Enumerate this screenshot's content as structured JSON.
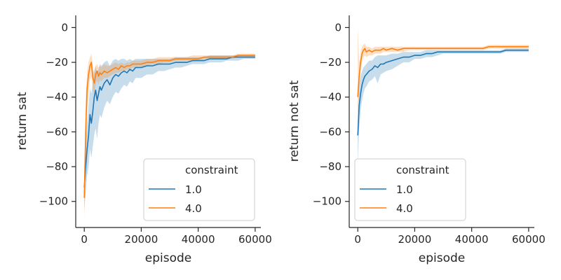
{
  "chart_data": [
    {
      "type": "line",
      "title": "",
      "xlabel": "episode",
      "ylabel": "return sat",
      "xlim": [
        -3000,
        62000
      ],
      "ylim": [
        -115,
        7
      ],
      "xticks": [
        {
          "value": 0,
          "label": "0"
        },
        {
          "value": 20000,
          "label": "20000"
        },
        {
          "value": 40000,
          "label": "40000"
        },
        {
          "value": 60000,
          "label": "60000"
        }
      ],
      "yticks": [
        {
          "value": 0,
          "label": "0"
        },
        {
          "value": -20,
          "label": "−20"
        },
        {
          "value": -40,
          "label": "−40"
        },
        {
          "value": -60,
          "label": "−60"
        },
        {
          "value": -80,
          "label": "−80"
        },
        {
          "value": -100,
          "label": "−100"
        }
      ],
      "legend": {
        "title": "constraint",
        "position": "lower-right"
      },
      "series": [
        {
          "name": "1.0",
          "color": "#1f77b4",
          "x": [
            0,
            500,
            1000,
            1500,
            2000,
            2500,
            3000,
            3500,
            4000,
            4500,
            5000,
            5500,
            6000,
            7000,
            8000,
            9000,
            10000,
            11000,
            12000,
            13000,
            14000,
            15000,
            16000,
            17000,
            18000,
            20000,
            22000,
            24000,
            26000,
            28000,
            30000,
            32000,
            34000,
            36000,
            38000,
            40000,
            42000,
            44000,
            46000,
            48000,
            50000,
            52000,
            54000,
            56000,
            58000,
            60000
          ],
          "y": [
            -92,
            -80,
            -70,
            -62,
            -50,
            -55,
            -48,
            -40,
            -36,
            -42,
            -38,
            -34,
            -36,
            -32,
            -30,
            -33,
            -29,
            -27,
            -28,
            -26,
            -25,
            -26,
            -24,
            -25,
            -23,
            -23,
            -22,
            -22,
            -21,
            -21,
            -21,
            -20,
            -20,
            -20,
            -19,
            -19,
            -19,
            -18,
            -18,
            -18,
            -18,
            -17,
            -17,
            -17,
            -17,
            -17
          ],
          "lower": [
            -105,
            -95,
            -85,
            -80,
            -70,
            -75,
            -68,
            -62,
            -58,
            -64,
            -55,
            -50,
            -52,
            -46,
            -42,
            -44,
            -40,
            -37,
            -38,
            -35,
            -33,
            -34,
            -31,
            -32,
            -29,
            -29,
            -27,
            -27,
            -25,
            -25,
            -24,
            -23,
            -23,
            -22,
            -21,
            -21,
            -21,
            -20,
            -20,
            -20,
            -19,
            -19,
            -19,
            -18,
            -18,
            -18
          ],
          "upper": [
            -80,
            -65,
            -55,
            -45,
            -35,
            -38,
            -32,
            -25,
            -22,
            -26,
            -24,
            -21,
            -22,
            -20,
            -19,
            -22,
            -19,
            -18,
            -19,
            -18,
            -18,
            -19,
            -18,
            -19,
            -18,
            -18,
            -18,
            -18,
            -18,
            -18,
            -18,
            -17,
            -17,
            -17,
            -17,
            -17,
            -17,
            -16,
            -16,
            -16,
            -16,
            -16,
            -16,
            -16,
            -16,
            -16
          ]
        },
        {
          "name": "4.0",
          "color": "#ff7f0e",
          "x": [
            0,
            500,
            1000,
            1500,
            2000,
            2500,
            3000,
            3500,
            4000,
            4500,
            5000,
            5500,
            6000,
            7000,
            8000,
            9000,
            10000,
            11000,
            12000,
            13000,
            14000,
            15000,
            16000,
            17000,
            18000,
            20000,
            22000,
            24000,
            26000,
            28000,
            30000,
            32000,
            34000,
            36000,
            38000,
            40000,
            42000,
            44000,
            46000,
            48000,
            50000,
            52000,
            54000,
            56000,
            58000,
            60000
          ],
          "y": [
            -98,
            -60,
            -35,
            -27,
            -22,
            -20,
            -29,
            -32,
            -27,
            -25,
            -28,
            -26,
            -27,
            -25,
            -26,
            -25,
            -24,
            -23,
            -24,
            -22,
            -23,
            -22,
            -22,
            -21,
            -21,
            -21,
            -20,
            -20,
            -19,
            -19,
            -19,
            -18,
            -18,
            -18,
            -18,
            -18,
            -17,
            -17,
            -17,
            -17,
            -17,
            -17,
            -16,
            -16,
            -16,
            -16
          ],
          "lower": [
            -110,
            -80,
            -50,
            -38,
            -30,
            -28,
            -36,
            -38,
            -33,
            -30,
            -33,
            -30,
            -31,
            -29,
            -29,
            -28,
            -27,
            -26,
            -26,
            -25,
            -25,
            -24,
            -24,
            -23,
            -23,
            -23,
            -22,
            -21,
            -21,
            -20,
            -20,
            -19,
            -19,
            -19,
            -19,
            -19,
            -18,
            -18,
            -18,
            -18,
            -18,
            -18,
            -17,
            -17,
            -17,
            -17
          ],
          "upper": [
            -88,
            -42,
            -25,
            -20,
            -17,
            -15,
            -22,
            -26,
            -22,
            -21,
            -23,
            -22,
            -23,
            -21,
            -22,
            -22,
            -21,
            -20,
            -21,
            -20,
            -21,
            -20,
            -20,
            -19,
            -19,
            -19,
            -18,
            -18,
            -17,
            -17,
            -17,
            -17,
            -17,
            -17,
            -16,
            -16,
            -16,
            -16,
            -16,
            -16,
            -16,
            -16,
            -15,
            -15,
            -15,
            -15
          ]
        }
      ]
    },
    {
      "type": "line",
      "title": "",
      "xlabel": "episode",
      "ylabel": "return not sat",
      "xlim": [
        -3000,
        62000
      ],
      "ylim": [
        -115,
        7
      ],
      "xticks": [
        {
          "value": 0,
          "label": "0"
        },
        {
          "value": 20000,
          "label": "20000"
        },
        {
          "value": 40000,
          "label": "40000"
        },
        {
          "value": 60000,
          "label": "60000"
        }
      ],
      "yticks": [
        {
          "value": 0,
          "label": "0"
        },
        {
          "value": -20,
          "label": "−20"
        },
        {
          "value": -40,
          "label": "−40"
        },
        {
          "value": -60,
          "label": "−60"
        },
        {
          "value": -80,
          "label": "−80"
        },
        {
          "value": -100,
          "label": "−100"
        }
      ],
      "legend": {
        "title": "constraint",
        "position": "lower-right"
      },
      "series": [
        {
          "name": "1.0",
          "color": "#1f77b4",
          "x": [
            0,
            500,
            1000,
            1500,
            2000,
            2500,
            3000,
            4000,
            5000,
            6000,
            7000,
            8000,
            9000,
            10000,
            12000,
            14000,
            16000,
            18000,
            20000,
            22000,
            24000,
            26000,
            28000,
            30000,
            32000,
            34000,
            36000,
            38000,
            40000,
            42000,
            44000,
            46000,
            48000,
            50000,
            52000,
            54000,
            56000,
            58000,
            60000
          ],
          "y": [
            -62,
            -45,
            -38,
            -33,
            -30,
            -28,
            -27,
            -25,
            -24,
            -22,
            -23,
            -21,
            -21,
            -20,
            -19,
            -18,
            -17,
            -17,
            -16,
            -16,
            -15,
            -15,
            -14,
            -14,
            -14,
            -14,
            -14,
            -14,
            -14,
            -14,
            -14,
            -14,
            -14,
            -14,
            -13,
            -13,
            -13,
            -13,
            -13
          ],
          "lower": [
            -78,
            -58,
            -48,
            -42,
            -38,
            -35,
            -34,
            -31,
            -30,
            -28,
            -32,
            -27,
            -26,
            -25,
            -24,
            -22,
            -20,
            -20,
            -18,
            -18,
            -17,
            -17,
            -16,
            -15,
            -15,
            -15,
            -15,
            -15,
            -15,
            -15,
            -15,
            -15,
            -15,
            -15,
            -14,
            -14,
            -14,
            -14,
            -14
          ],
          "upper": [
            -48,
            -33,
            -28,
            -25,
            -23,
            -22,
            -21,
            -19,
            -19,
            -17,
            -16,
            -16,
            -16,
            -16,
            -15,
            -15,
            -14,
            -14,
            -14,
            -14,
            -13,
            -13,
            -13,
            -13,
            -13,
            -13,
            -13,
            -13,
            -13,
            -13,
            -13,
            -13,
            -13,
            -13,
            -12,
            -12,
            -12,
            -12,
            -12
          ]
        },
        {
          "name": "4.0",
          "color": "#ff7f0e",
          "x": [
            0,
            500,
            1000,
            1500,
            2000,
            2500,
            3000,
            4000,
            5000,
            6000,
            7000,
            8000,
            9000,
            10000,
            12000,
            14000,
            16000,
            18000,
            20000,
            22000,
            24000,
            26000,
            28000,
            30000,
            32000,
            34000,
            36000,
            38000,
            40000,
            42000,
            44000,
            46000,
            48000,
            50000,
            52000,
            54000,
            56000,
            58000,
            60000
          ],
          "y": [
            -40,
            -28,
            -20,
            -15,
            -13,
            -12,
            -14,
            -13,
            -14,
            -13,
            -13,
            -13,
            -12,
            -13,
            -12,
            -13,
            -12,
            -12,
            -12,
            -12,
            -12,
            -12,
            -12,
            -12,
            -12,
            -12,
            -12,
            -12,
            -12,
            -12,
            -12,
            -11,
            -11,
            -11,
            -11,
            -11,
            -11,
            -11,
            -11
          ],
          "lower": [
            -50,
            -35,
            -26,
            -20,
            -17,
            -16,
            -17,
            -16,
            -16,
            -15,
            -15,
            -15,
            -14,
            -14,
            -14,
            -14,
            -14,
            -13,
            -13,
            -13,
            -13,
            -13,
            -13,
            -13,
            -13,
            -13,
            -13,
            -13,
            -13,
            -13,
            -13,
            -12,
            -12,
            -12,
            -12,
            -12,
            -12,
            -12,
            -12
          ],
          "upper": [
            0,
            -20,
            -14,
            -11,
            -10,
            -9,
            -11,
            -11,
            -12,
            -11,
            -11,
            -11,
            -11,
            -11,
            -11,
            -11,
            -11,
            -11,
            -11,
            -11,
            -11,
            -11,
            -11,
            -11,
            -11,
            -11,
            -11,
            -11,
            -11,
            -11,
            -11,
            -10,
            -10,
            -10,
            -10,
            -10,
            -10,
            -10,
            -10
          ]
        }
      ]
    }
  ]
}
